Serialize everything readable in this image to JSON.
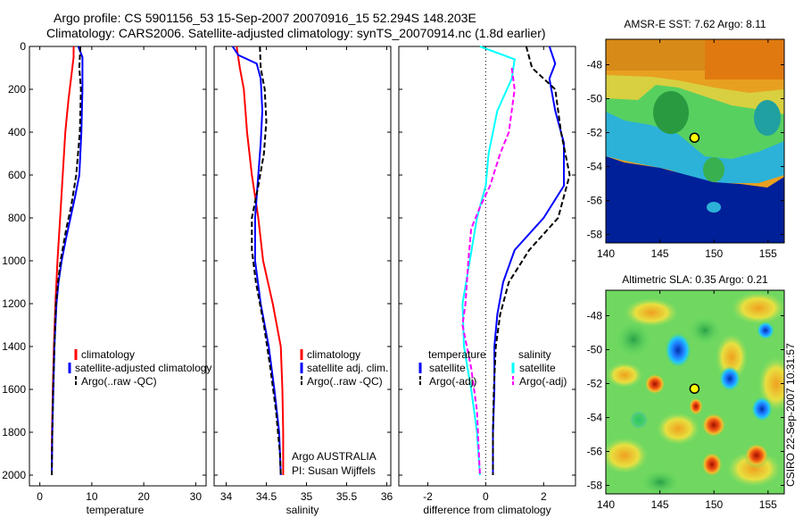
{
  "title_line1": "Argo profile: CS 5901156_53 15-Sep-2007 20070916_15 52.294S 148.203E",
  "title_line2": "Climatology: CARS2006. Satellite-adjusted climatology: synTS_20070914.nc (1.8d earlier)",
  "side_label": "CSIRO 22-Sep-2007 10:31:57",
  "colors": {
    "climatology": "#ff0000",
    "satellite": "#0000ff",
    "argo": "#000000",
    "sat_sal": "#00ffff",
    "argo_adj_sal": "#ff00ff"
  },
  "chart_data": [
    {
      "type": "line",
      "xlabel": "temperature",
      "xticks": [
        0,
        10,
        20,
        30
      ],
      "xlim": [
        -2,
        32
      ],
      "ylim": [
        2050,
        0
      ],
      "yticks": [
        0,
        200,
        400,
        600,
        800,
        1000,
        1200,
        1400,
        1600,
        1800,
        2000
      ],
      "legend": [
        "climatology",
        "satellite-adjusted climatology",
        "Argo(..raw -QC)"
      ],
      "series": [
        {
          "name": "climatology",
          "color": "#ff0000",
          "dash": false,
          "points": [
            [
              6.5,
              0
            ],
            [
              6.5,
              50
            ],
            [
              6.0,
              150
            ],
            [
              5.5,
              250
            ],
            [
              4.9,
              400
            ],
            [
              4.4,
              600
            ],
            [
              3.9,
              800
            ],
            [
              3.4,
              1000
            ],
            [
              3.0,
              1200
            ],
            [
              2.7,
              1400
            ],
            [
              2.5,
              1600
            ],
            [
              2.35,
              1800
            ],
            [
              2.3,
              2000
            ]
          ]
        },
        {
          "name": "satellite-adjusted climatology",
          "color": "#0000ff",
          "dash": false,
          "points": [
            [
              7.4,
              0
            ],
            [
              8.2,
              50
            ],
            [
              8.2,
              200
            ],
            [
              8.0,
              400
            ],
            [
              7.6,
              600
            ],
            [
              6.8,
              700
            ],
            [
              5.9,
              800
            ],
            [
              5.0,
              900
            ],
            [
              4.2,
              1000
            ],
            [
              3.6,
              1100
            ],
            [
              3.2,
              1200
            ],
            [
              2.8,
              1400
            ],
            [
              2.6,
              1600
            ],
            [
              2.4,
              1800
            ],
            [
              2.3,
              2000
            ]
          ]
        },
        {
          "name": "Argo(..raw -QC)",
          "color": "#000000",
          "dash": true,
          "points": [
            [
              7.8,
              0
            ],
            [
              7.6,
              100
            ],
            [
              7.9,
              200
            ],
            [
              7.7,
              400
            ],
            [
              7.0,
              600
            ],
            [
              6.0,
              750
            ],
            [
              5.1,
              850
            ],
            [
              4.0,
              1000
            ],
            [
              3.5,
              1100
            ],
            [
              3.1,
              1200
            ],
            [
              2.8,
              1400
            ],
            [
              2.55,
              1600
            ],
            [
              2.4,
              1800
            ],
            [
              2.3,
              2000
            ]
          ]
        }
      ]
    },
    {
      "type": "line",
      "xlabel": "salinity",
      "xticks": [
        34,
        34.5,
        35,
        35.5,
        36
      ],
      "xlim": [
        33.85,
        36.05
      ],
      "ylim": [
        2050,
        0
      ],
      "legend": [
        "climatology",
        "satellite adj. clim.",
        "Argo(..raw -QC)"
      ],
      "annotation": [
        "Argo AUSTRALIA",
        "PI: Susan Wijffels"
      ],
      "series": [
        {
          "name": "climatology",
          "color": "#ff0000",
          "dash": false,
          "points": [
            [
              34.13,
              0
            ],
            [
              34.17,
              100
            ],
            [
              34.22,
              200
            ],
            [
              34.26,
              400
            ],
            [
              34.32,
              600
            ],
            [
              34.4,
              800
            ],
            [
              34.46,
              1000
            ],
            [
              34.58,
              1200
            ],
            [
              34.68,
              1400
            ],
            [
              34.7,
              1600
            ],
            [
              34.71,
              1800
            ],
            [
              34.71,
              2000
            ]
          ]
        },
        {
          "name": "satellite adj. clim.",
          "color": "#0000ff",
          "dash": false,
          "points": [
            [
              34.08,
              0
            ],
            [
              34.15,
              40
            ],
            [
              34.38,
              80
            ],
            [
              34.43,
              150
            ],
            [
              34.45,
              300
            ],
            [
              34.43,
              450
            ],
            [
              34.4,
              600
            ],
            [
              34.36,
              800
            ],
            [
              34.36,
              1000
            ],
            [
              34.43,
              1200
            ],
            [
              34.53,
              1400
            ],
            [
              34.6,
              1600
            ],
            [
              34.66,
              1800
            ],
            [
              34.68,
              2000
            ]
          ]
        },
        {
          "name": "Argo(..raw -QC)",
          "color": "#000000",
          "dash": true,
          "points": [
            [
              34.42,
              0
            ],
            [
              34.43,
              100
            ],
            [
              34.48,
              200
            ],
            [
              34.5,
              350
            ],
            [
              34.47,
              500
            ],
            [
              34.4,
              650
            ],
            [
              34.32,
              800
            ],
            [
              34.32,
              950
            ],
            [
              34.37,
              1100
            ],
            [
              34.47,
              1300
            ],
            [
              34.55,
              1500
            ],
            [
              34.62,
              1700
            ],
            [
              34.67,
              1900
            ],
            [
              34.68,
              2000
            ]
          ]
        }
      ]
    },
    {
      "type": "line",
      "xlabel": "difference from climatology",
      "xticks": [
        -2,
        0,
        2
      ],
      "xlim": [
        -3,
        3.1
      ],
      "ylim": [
        2050,
        0
      ],
      "zero_line": true,
      "legend_heads": [
        "temperature",
        "salinity"
      ],
      "legend": [
        "satellite",
        "Argo(-adj)",
        "satellite",
        "Argo(-adj)"
      ],
      "series": [
        {
          "name": "satellite",
          "color": "#0000ff",
          "dash": false,
          "points": [
            [
              2.2,
              0
            ],
            [
              2.4,
              80
            ],
            [
              2.2,
              150
            ],
            [
              2.4,
              300
            ],
            [
              2.7,
              450
            ],
            [
              2.7,
              650
            ],
            [
              2.0,
              800
            ],
            [
              1.0,
              950
            ],
            [
              0.6,
              1100
            ],
            [
              0.4,
              1250
            ],
            [
              0.3,
              1400
            ],
            [
              0.3,
              1600
            ],
            [
              0.25,
              1800
            ],
            [
              0.25,
              2000
            ]
          ]
        },
        {
          "name": "Argo(-adj)",
          "color": "#000000",
          "dash": true,
          "points": [
            [
              1.4,
              0
            ],
            [
              1.6,
              100
            ],
            [
              2.4,
              200
            ],
            [
              2.6,
              400
            ],
            [
              2.9,
              600
            ],
            [
              2.5,
              800
            ],
            [
              1.5,
              950
            ],
            [
              0.8,
              1100
            ],
            [
              0.5,
              1250
            ],
            [
              0.35,
              1400
            ],
            [
              0.28,
              1600
            ],
            [
              0.25,
              1800
            ],
            [
              0.25,
              2000
            ]
          ]
        },
        {
          "name": "satellite",
          "color": "#00ffff",
          "dash": false,
          "points": [
            [
              -0.2,
              0
            ],
            [
              1.0,
              60
            ],
            [
              0.9,
              150
            ],
            [
              0.4,
              300
            ],
            [
              0.1,
              500
            ],
            [
              0.0,
              650
            ],
            [
              -0.3,
              800
            ],
            [
              -0.55,
              1000
            ],
            [
              -0.8,
              1200
            ],
            [
              -0.75,
              1400
            ],
            [
              -0.5,
              1600
            ],
            [
              -0.3,
              1800
            ],
            [
              -0.2,
              2000
            ]
          ]
        },
        {
          "name": "Argo(-adj)",
          "color": "#ff00ff",
          "dash": true,
          "points": [
            [
              0.9,
              100
            ],
            [
              1.0,
              200
            ],
            [
              0.8,
              400
            ],
            [
              0.5,
              500
            ],
            [
              0.15,
              650
            ],
            [
              -0.2,
              750
            ],
            [
              -0.5,
              850
            ],
            [
              -0.6,
              1000
            ],
            [
              -0.7,
              1200
            ],
            [
              -0.8,
              1300
            ],
            [
              -0.5,
              1500
            ],
            [
              -0.3,
              1700
            ],
            [
              -0.2,
              2000
            ]
          ]
        }
      ]
    },
    {
      "type": "heatmap",
      "title": "AMSR-E SST: 7.62 Argo: 8.11",
      "xticks": [
        140,
        145,
        150,
        155
      ],
      "yticks": [
        -48,
        -50,
        -52,
        -54,
        -56,
        -58
      ],
      "xlim": [
        140,
        156.5
      ],
      "ylim": [
        -58.5,
        -46.5
      ],
      "marker": [
        148.2,
        -52.3
      ]
    },
    {
      "type": "heatmap",
      "title": "Altimetric SLA: 0.35 Argo: 0.21",
      "xticks": [
        140,
        145,
        150,
        155
      ],
      "yticks": [
        -48,
        -50,
        -52,
        -54,
        -56,
        -58
      ],
      "xlim": [
        140,
        156.5
      ],
      "ylim": [
        -58.5,
        -46.5
      ],
      "marker": [
        148.2,
        -52.3
      ]
    }
  ]
}
